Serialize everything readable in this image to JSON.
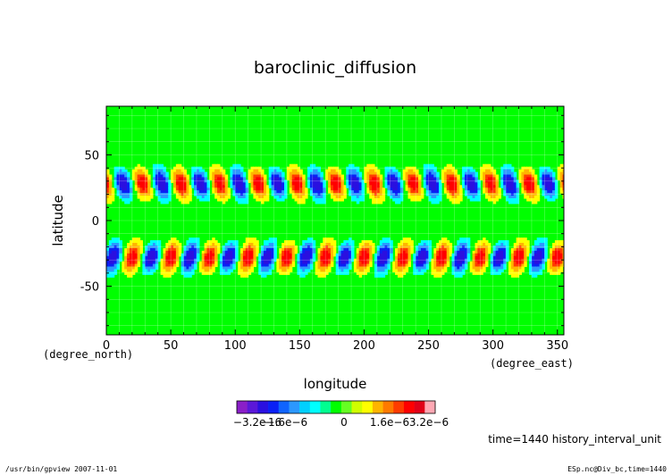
{
  "chart_data": {
    "type": "heatmap",
    "title": "baroclinic_diffusion",
    "xlabel": "longitude",
    "ylabel": "latitude",
    "x_units": "(degree_east)",
    "y_units": "(degree_north)",
    "xlim": [
      0,
      355
    ],
    "ylim": [
      -87,
      87
    ],
    "x_ticks": [
      0,
      50,
      100,
      150,
      200,
      250,
      300,
      350
    ],
    "y_ticks": [
      -50,
      0,
      50
    ],
    "grid": true,
    "colorbar": {
      "tick_labels": [
        "−3.2e−6",
        "−1.6e−6",
        "0",
        "1.6e−6",
        "3.2e−6"
      ],
      "colors": [
        "#8a1fc8",
        "#5b18d8",
        "#2a10e0",
        "#0a20f5",
        "#1064ff",
        "#2c98ff",
        "#00d0ff",
        "#00ffff",
        "#00ff90",
        "#00ff00",
        "#66ff22",
        "#d0ff00",
        "#ffff00",
        "#ffb400",
        "#ff7a00",
        "#ff3c00",
        "#ff0000",
        "#e00018",
        "#ffa8b4"
      ]
    },
    "waves": {
      "wavenumber": 12,
      "centers_lat": [
        28,
        -28
      ],
      "lat_halfwidth": 11,
      "peak_lon_north": [
        28,
        58,
        88,
        118,
        148,
        178,
        208,
        238,
        268,
        298,
        328,
        358
      ],
      "peak_lon_south": [
        20,
        50,
        80,
        110,
        140,
        170,
        200,
        230,
        260,
        290,
        320,
        350
      ]
    }
  },
  "annotations": {
    "time": "time=1440 history_interval_unit",
    "footer_left": "/usr/bin/gpview   2007-11-01",
    "footer_right": "ESp.nc@Div_bc,time=1440"
  }
}
